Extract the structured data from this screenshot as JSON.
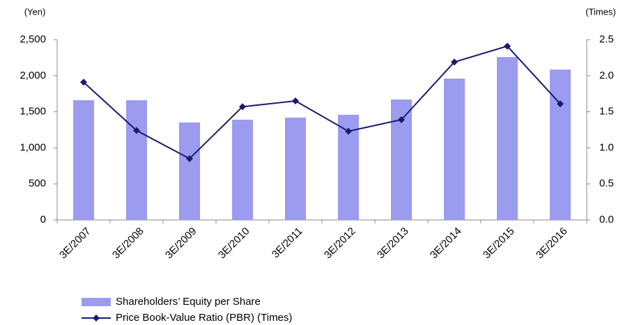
{
  "chart_data": {
    "type": "bar_line",
    "y_label": "(Yen)",
    "y2_label": "(Times)",
    "categories": [
      "3E/2007",
      "3E/2008",
      "3E/2009",
      "3E/2010",
      "3E/2011",
      "3E/2012",
      "3E/2013",
      "3E/2014",
      "3E/2015",
      "3E/2016"
    ],
    "series": [
      {
        "name": "Shareholders’ Equity per Share",
        "type": "bar",
        "color": "#9b9bf0",
        "values": [
          1660,
          1660,
          1351,
          1390,
          1419,
          1458,
          1670,
          1960,
          2259,
          2085
        ]
      },
      {
        "name": "Price Book-Value Ratio (PBR) (Times)",
        "type": "line",
        "color": "#1a1a6e",
        "axis": "y2",
        "values": [
          1.91,
          1.24,
          0.85,
          1.57,
          1.65,
          1.23,
          1.39,
          2.19,
          2.41,
          1.61
        ]
      }
    ],
    "ylim": [
      0,
      2500
    ],
    "yticks": [
      0,
      500,
      {
        "value": 1000,
        "label": "1,000"
      },
      {
        "value": 1500,
        "label": "1,500"
      },
      {
        "value": 2000,
        "label": "2,000"
      },
      {
        "value": 2500,
        "label": "2,500"
      }
    ],
    "y2lim": [
      0,
      2.5
    ],
    "y2ticks": [
      {
        "value": 0,
        "label": "0.0"
      },
      0.5,
      {
        "value": 1,
        "label": "1.0"
      },
      1.5,
      {
        "value": 2,
        "label": "2.0"
      },
      2.5
    ],
    "grid": false,
    "legend": "bottom"
  }
}
